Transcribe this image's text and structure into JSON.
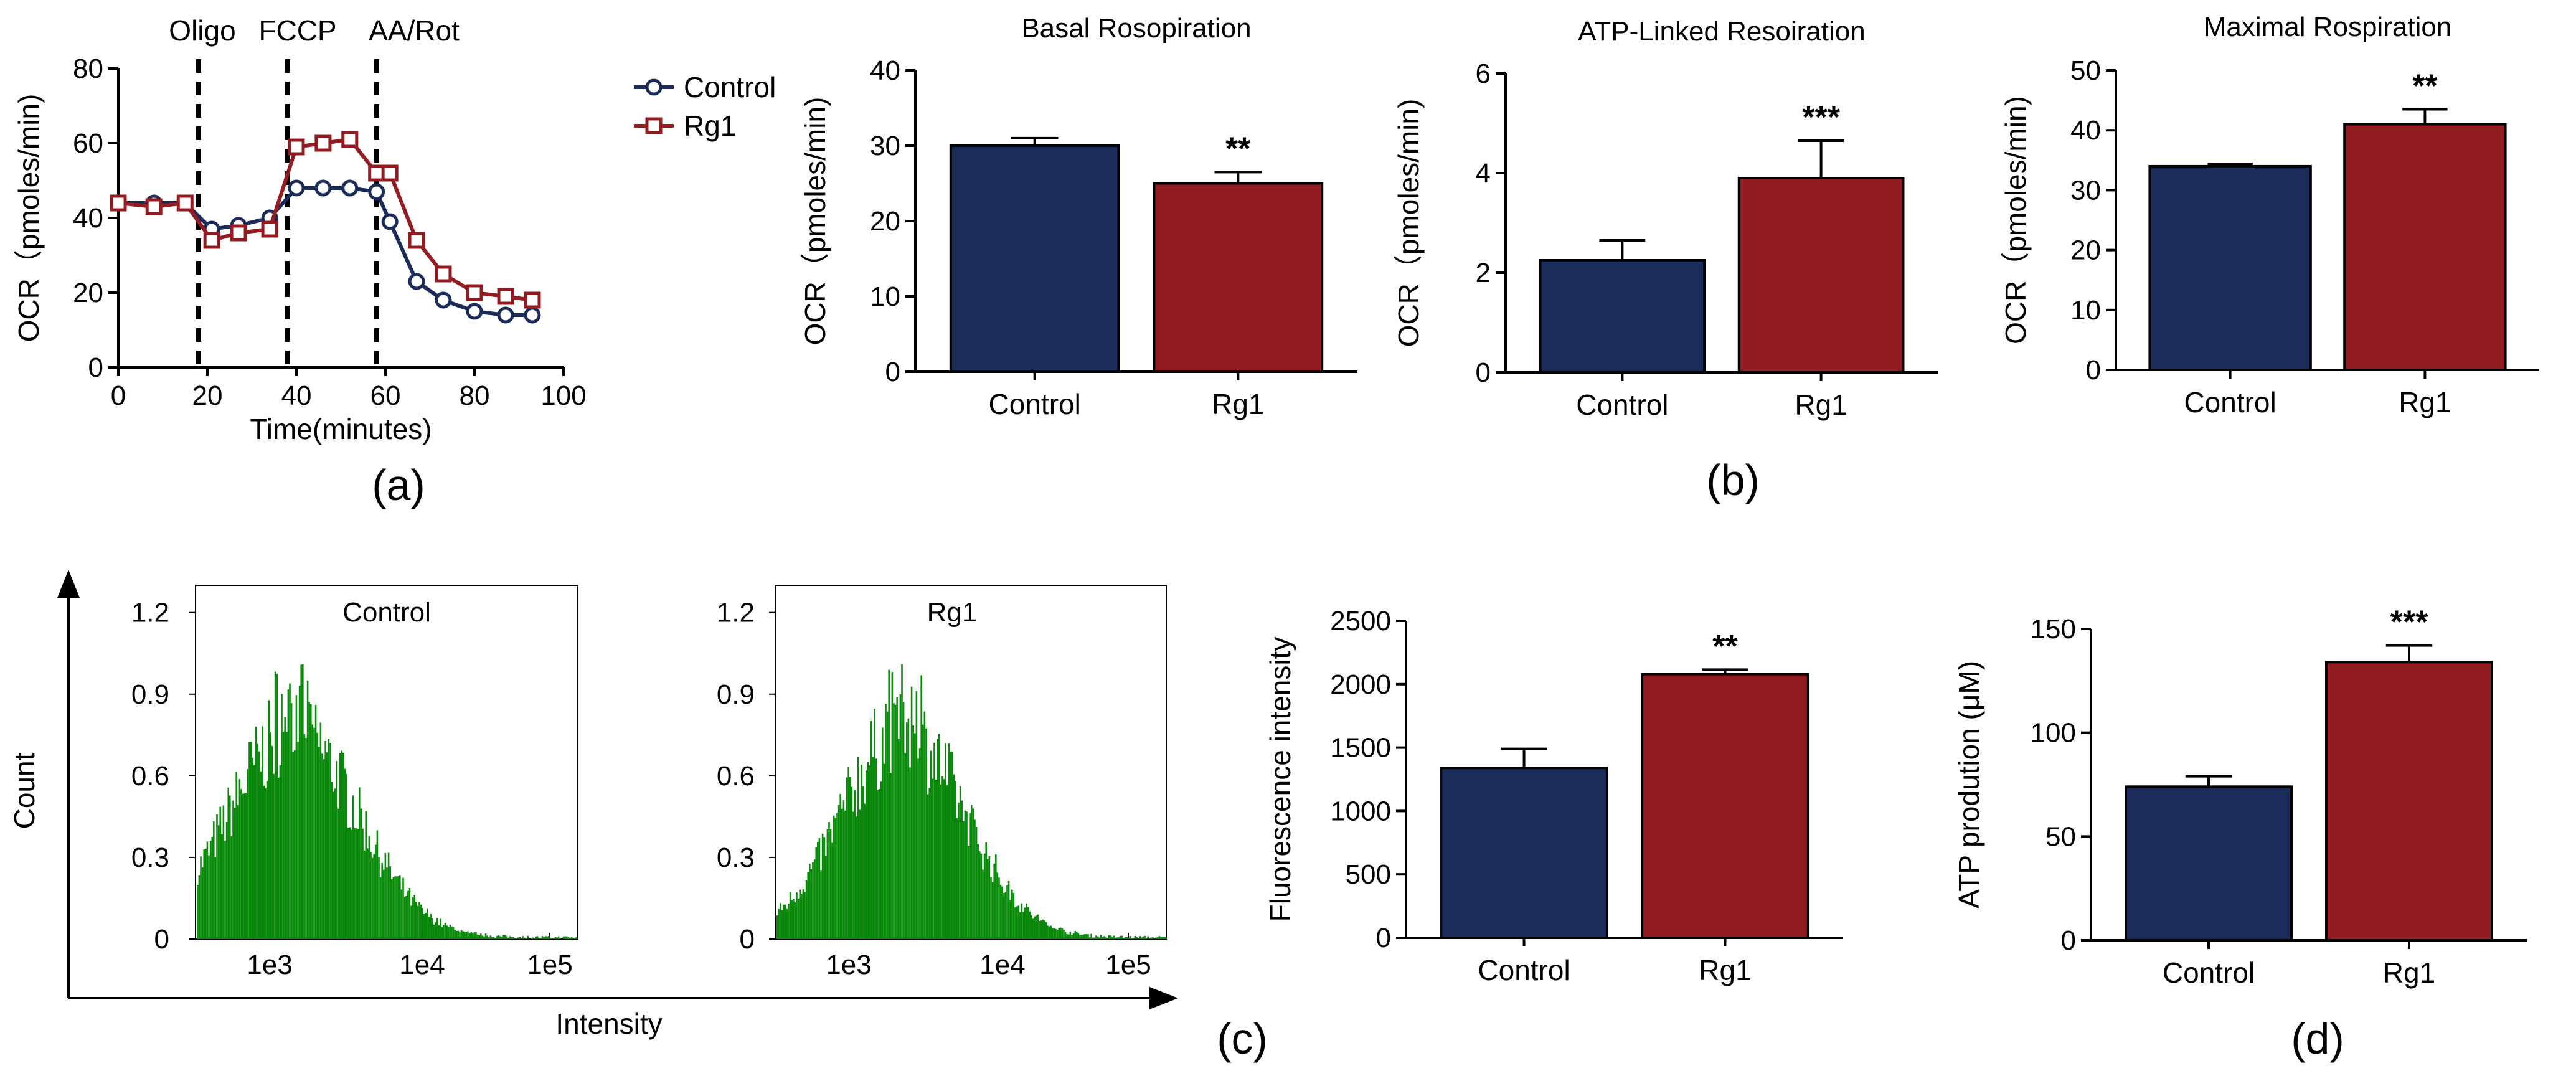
{
  "colors": {
    "control": "#1b2b5a",
    "rg1": "#931c22",
    "hist": "#0a8a0a",
    "axis": "#000000"
  },
  "panel_labels": [
    "(a)",
    "(b)",
    "(c)",
    "(d)"
  ],
  "chart_data": [
    {
      "id": "a",
      "type": "line",
      "xlabel": "Time(minutes)",
      "ylabel": "OCR（pmoles/min)",
      "xlim": [
        0,
        100
      ],
      "ylim": [
        0,
        80
      ],
      "xticks": [
        0,
        20,
        40,
        60,
        80,
        100
      ],
      "yticks": [
        0,
        20,
        40,
        60,
        80
      ],
      "x": [
        0,
        8,
        15,
        21,
        27,
        34,
        40,
        46,
        52,
        58,
        61,
        67,
        73,
        80,
        87,
        93
      ],
      "series": [
        {
          "name": "Control",
          "marker": "circle",
          "values": [
            44,
            44,
            44,
            37,
            38,
            40,
            48,
            48,
            48,
            47,
            39,
            23,
            18,
            15,
            14,
            14
          ]
        },
        {
          "name": "Rg1",
          "marker": "square",
          "values": [
            44,
            43,
            44,
            34,
            36,
            37,
            59,
            60,
            61,
            52,
            52,
            34,
            25,
            20,
            19,
            18
          ]
        }
      ],
      "events": [
        {
          "label": "Oligo",
          "x": 18
        },
        {
          "label": "FCCP",
          "x": 38
        },
        {
          "label": "AA/Rot",
          "x": 58
        }
      ],
      "legend": {
        "position": "right",
        "entries": [
          "Control",
          "Rg1"
        ]
      }
    },
    {
      "id": "b1",
      "type": "bar",
      "title": "Basal Rosopiration",
      "ylabel": "OCR（pmoles/min)",
      "categories": [
        "Control",
        "Rg1"
      ],
      "values": [
        30,
        25
      ],
      "errors": [
        1,
        1.5
      ],
      "significance": [
        "",
        "**"
      ],
      "ylim": [
        0,
        40
      ],
      "yticks": [
        0,
        10,
        20,
        30,
        40
      ]
    },
    {
      "id": "b2",
      "type": "bar",
      "title": "ATP-Linked Resoiration",
      "ylabel": "OCR（pmoles/min)",
      "categories": [
        "Control",
        "Rg1"
      ],
      "values": [
        2.25,
        3.9
      ],
      "errors": [
        0.4,
        0.75
      ],
      "significance": [
        "",
        "***"
      ],
      "ylim": [
        0,
        6
      ],
      "yticks": [
        0,
        2,
        4,
        6
      ]
    },
    {
      "id": "b3",
      "type": "bar",
      "title": "Maximal Rospiration",
      "ylabel": "OCR（pmoles/min)",
      "categories": [
        "Control",
        "Rg1"
      ],
      "values": [
        34,
        41
      ],
      "errors": [
        0.4,
        2.5
      ],
      "significance": [
        "",
        "**"
      ],
      "ylim": [
        0,
        50
      ],
      "yticks": [
        0,
        10,
        20,
        30,
        40,
        50
      ]
    },
    {
      "id": "c_hist",
      "type": "histogram",
      "ylabel": "Count",
      "xlabel": "Intensity",
      "ylim": [
        0,
        1.3
      ],
      "yticks": [
        "0",
        "0.3",
        "0.6",
        "0.9",
        "1.2"
      ],
      "xticks": [
        "1e3",
        "1e4",
        "1e5"
      ],
      "panels": [
        {
          "title": "Control",
          "peak_log10": 3.15,
          "width_log10": 0.42,
          "peak_count": 1.0
        },
        {
          "title": "Rg1",
          "peak_log10": 3.35,
          "width_log10": 0.4,
          "peak_count": 1.0
        }
      ]
    },
    {
      "id": "c_bar",
      "type": "bar",
      "ylabel": "Fluorescence intensity",
      "categories": [
        "Control",
        "Rg1"
      ],
      "values": [
        1340,
        2080
      ],
      "errors": [
        150,
        35
      ],
      "significance": [
        "",
        "**"
      ],
      "ylim": [
        0,
        2500
      ],
      "yticks": [
        0,
        500,
        1000,
        1500,
        2000,
        2500
      ]
    },
    {
      "id": "d",
      "type": "bar",
      "ylabel": "ATP prodution (μM)",
      "categories": [
        "Control",
        "Rg1"
      ],
      "values": [
        74,
        134
      ],
      "errors": [
        5,
        8
      ],
      "significance": [
        "",
        "***"
      ],
      "ylim": [
        0,
        150
      ],
      "yticks": [
        0,
        50,
        100,
        150
      ]
    }
  ]
}
